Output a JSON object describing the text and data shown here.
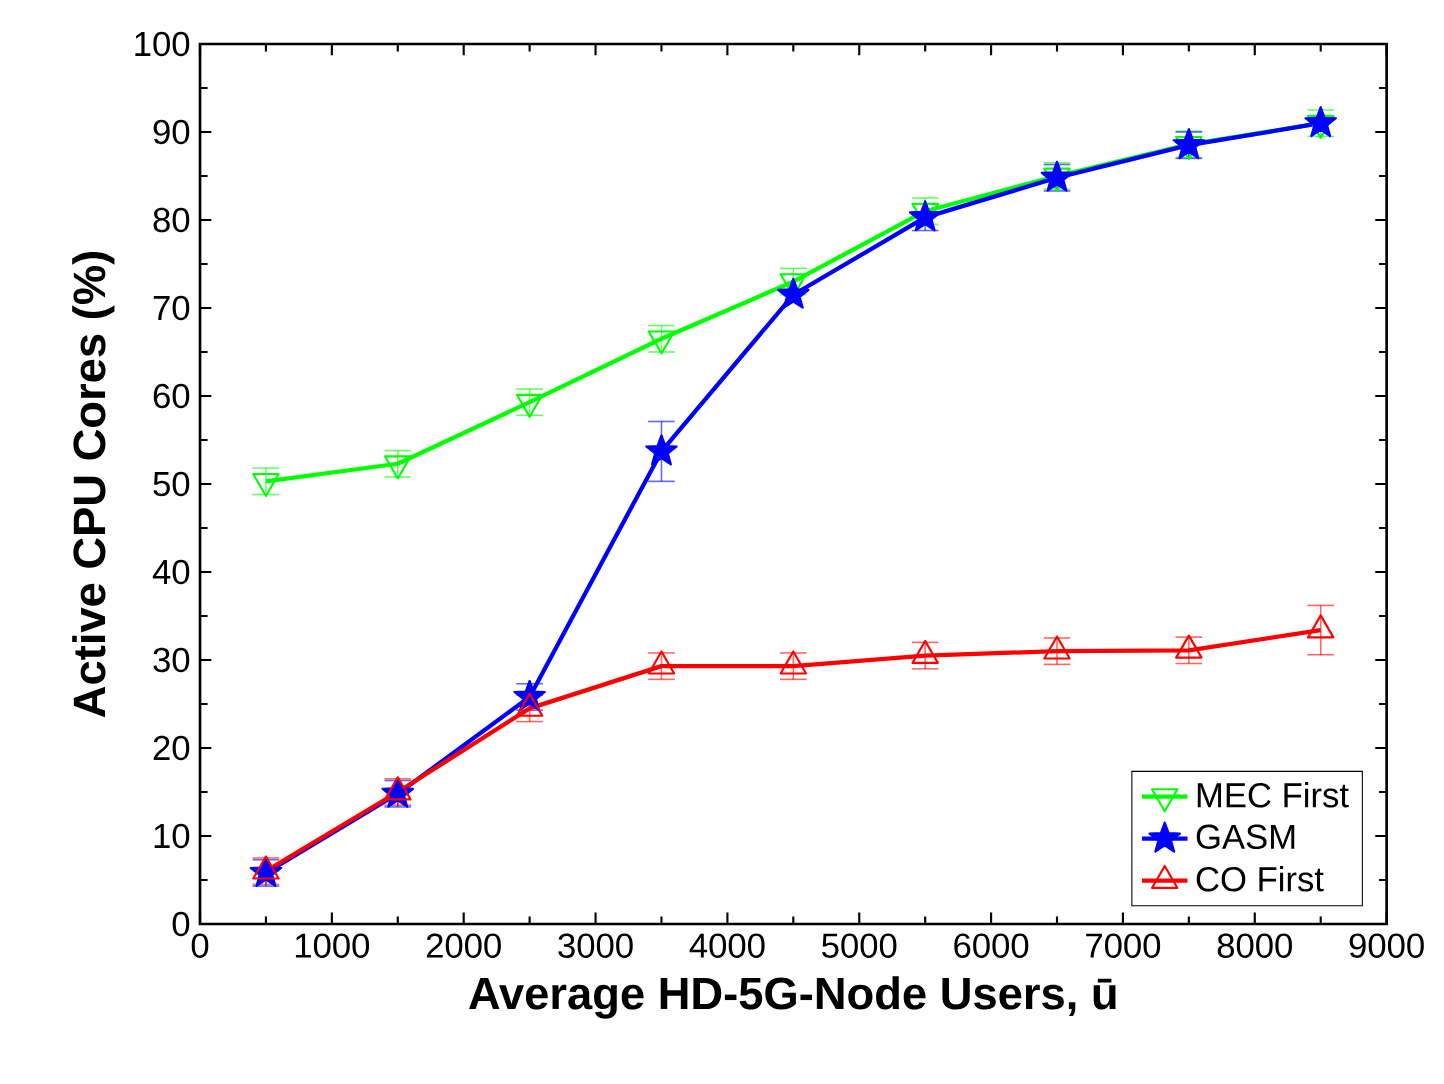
{
  "chart_data": {
    "type": "line",
    "xlabel": "Average HD-5G-Node Users, ū",
    "ylabel": "Active CPU Cores (%)",
    "x": [
      500,
      1500,
      2500,
      3500,
      4500,
      5500,
      6500,
      7500,
      8500
    ],
    "series": [
      {
        "name": "MEC First",
        "color": "#00ff00",
        "marker": "triangle-down",
        "values": [
          50.3,
          52.3,
          59.3,
          66.5,
          73,
          81,
          85,
          88.6,
          91
        ],
        "errors": [
          1.5,
          1.5,
          1.5,
          1.5,
          1.5,
          1.5,
          1.5,
          1.5,
          1.5
        ]
      },
      {
        "name": "GASM",
        "color": "#0000ff",
        "marker": "star",
        "values": [
          5.8,
          14.8,
          25.8,
          53.7,
          71.5,
          80.3,
          84.8,
          88.5,
          91
        ],
        "errors": [
          1.5,
          1.5,
          1.5,
          3.4,
          null,
          1.5,
          1.5,
          1.5,
          null
        ]
      },
      {
        "name": "CO First",
        "color": "#ff0000",
        "marker": "triangle",
        "values": [
          6,
          15,
          24.5,
          29.3,
          29.3,
          30.5,
          31,
          31.1,
          33.4
        ],
        "errors": [
          1.5,
          1.5,
          1.5,
          1.5,
          1.5,
          1.5,
          1.5,
          1.5,
          2.8
        ]
      }
    ],
    "xlim": [
      0,
      9000
    ],
    "xticks": [
      0,
      1000,
      2000,
      3000,
      4000,
      5000,
      6000,
      7000,
      8000,
      9000
    ],
    "ylim": [
      0,
      100
    ],
    "yticks": [
      0,
      10,
      20,
      30,
      40,
      50,
      60,
      70,
      80,
      90,
      100
    ],
    "legend": "bottom right",
    "grid": false,
    "line_style": "solid"
  }
}
